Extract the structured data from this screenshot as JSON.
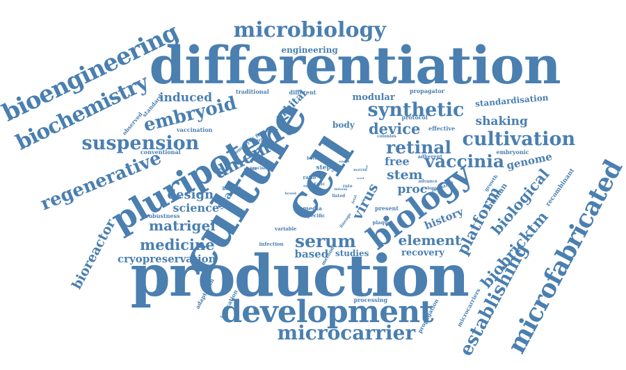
{
  "color": "#4a7fb0",
  "background": "#ffffff",
  "words": [
    {
      "text": "production"
    },
    {
      "text": "differentiation"
    },
    {
      "text": "culture"
    },
    {
      "text": "cell"
    },
    {
      "text": "pluripotent"
    },
    {
      "text": "biology"
    },
    {
      "text": "development"
    },
    {
      "text": "microfabricated"
    },
    {
      "text": "bioengineering"
    },
    {
      "text": "biochemistry"
    },
    {
      "text": "microbiology"
    },
    {
      "text": "microcarrier"
    },
    {
      "text": "suspension"
    },
    {
      "text": "synthetic"
    },
    {
      "text": "regenerative"
    },
    {
      "text": "cultivation"
    },
    {
      "text": "embryoid"
    },
    {
      "text": "establishing"
    },
    {
      "text": "serum"
    },
    {
      "text": "vaccinia"
    },
    {
      "text": "retinal"
    },
    {
      "text": "dmem"
    },
    {
      "text": "platform"
    },
    {
      "text": "biobricktm"
    },
    {
      "text": "biological"
    },
    {
      "text": "device"
    },
    {
      "text": "medicine"
    },
    {
      "text": "matrigel"
    },
    {
      "text": "virus"
    },
    {
      "text": "element"
    },
    {
      "text": "stem"
    },
    {
      "text": "bioreactor"
    },
    {
      "text": "design"
    },
    {
      "text": "induced"
    },
    {
      "text": "cryopreservation"
    },
    {
      "text": "science"
    },
    {
      "text": "proc"
    },
    {
      "text": "free"
    },
    {
      "text": "shaking"
    },
    {
      "text": "genome"
    },
    {
      "text": "history"
    },
    {
      "text": "based"
    },
    {
      "text": "scale"
    },
    {
      "text": "orbital"
    },
    {
      "text": "engineering"
    },
    {
      "text": "modular"
    },
    {
      "text": "standardisation"
    },
    {
      "text": "recovery"
    },
    {
      "text": "studies"
    },
    {
      "text": "body"
    },
    {
      "text": "human"
    },
    {
      "text": "recombinant"
    },
    {
      "text": "microcarriers"
    },
    {
      "text": "propagation"
    },
    {
      "text": "processing"
    },
    {
      "text": "adaptation"
    },
    {
      "text": "indication"
    },
    {
      "text": "observed"
    },
    {
      "text": "standard"
    },
    {
      "text": "traditional"
    },
    {
      "text": "different"
    },
    {
      "text": "propagator"
    },
    {
      "text": "protocol"
    },
    {
      "text": "effective"
    },
    {
      "text": "vaccination"
    },
    {
      "text": "conventional"
    },
    {
      "text": "robustness"
    },
    {
      "text": "oncolytic"
    },
    {
      "text": "future"
    },
    {
      "text": "marker"
    },
    {
      "text": "colonies"
    },
    {
      "text": "embryonic"
    },
    {
      "text": "adherent"
    },
    {
      "text": "advance"
    },
    {
      "text": "colony"
    },
    {
      "text": "industrial"
    },
    {
      "text": "growth"
    },
    {
      "text": "present"
    },
    {
      "text": "plaque"
    },
    {
      "text": "media"
    },
    {
      "text": "specific"
    },
    {
      "text": "lineage"
    },
    {
      "text": "variable"
    },
    {
      "text": "infection"
    },
    {
      "text": "method"
    },
    {
      "text": "benefit"
    },
    {
      "text": "permit"
    },
    {
      "text": "precise"
    },
    {
      "text": "step"
    },
    {
      "text": "ratio"
    },
    {
      "text": "bovine"
    },
    {
      "text": "static"
    },
    {
      "text": "rate"
    },
    {
      "text": "agent"
    },
    {
      "text": "brand"
    },
    {
      "text": "listed"
    },
    {
      "text": "inform"
    },
    {
      "text": "strain"
    },
    {
      "text": "matrix"
    },
    {
      "text": "eagle"
    },
    {
      "text": "fetal"
    },
    {
      "text": "rise"
    },
    {
      "text": "seed"
    }
  ]
}
